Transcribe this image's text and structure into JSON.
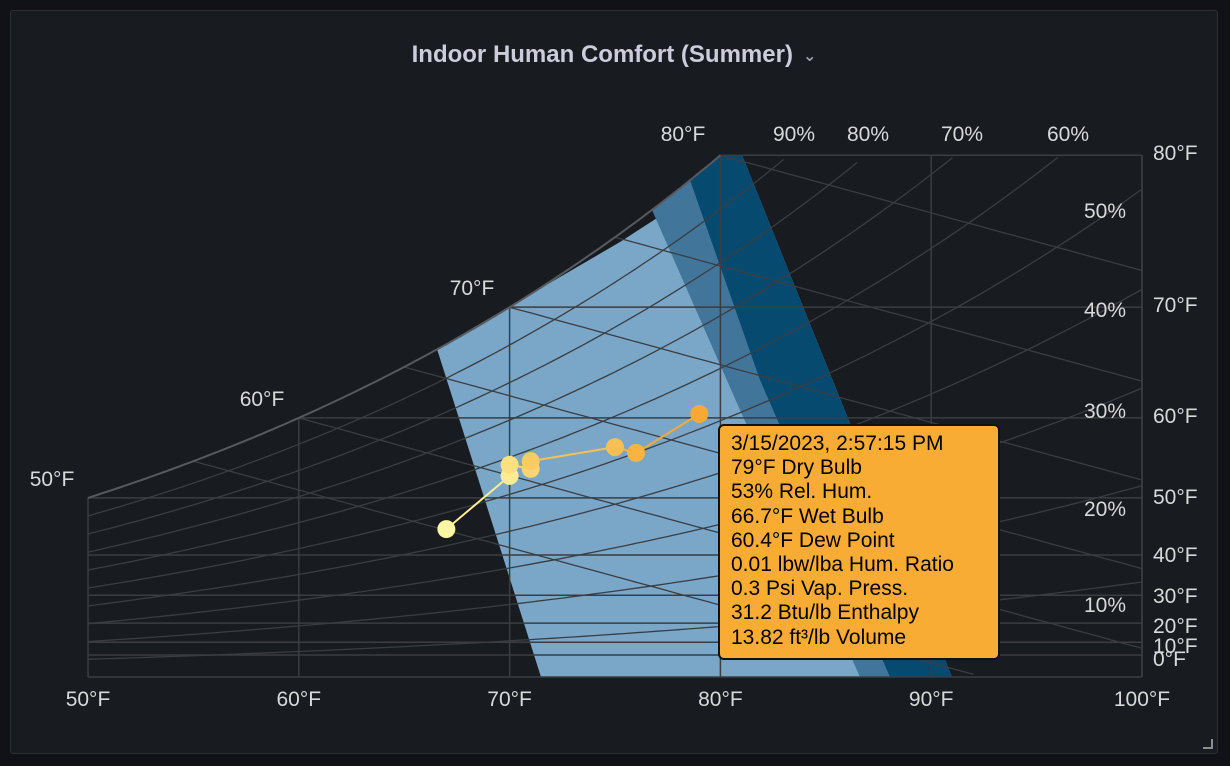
{
  "panel": {
    "title": "Indoor Human Comfort (Summer)",
    "menu_icon": "chevron-down-icon"
  },
  "colors": {
    "background": "#111217",
    "panel": "#181b1f",
    "comfort_zone_light": "#7aa7c7",
    "comfort_zone_mid": "#42759a",
    "comfort_zone_dark": "#064a70",
    "point_oldest": "#fcf7a2",
    "point_newest": "#f8a833",
    "tooltip_bg": "#f8ac33"
  },
  "chart_data": {
    "type": "psychrometric",
    "title": "Indoor Human Comfort (Summer)",
    "dry_bulb_range_f": [
      50,
      100
    ],
    "x_ticks": [
      "50°F",
      "60°F",
      "70°F",
      "80°F",
      "90°F",
      "100°F"
    ],
    "right_axis_ticks": [
      "80°F",
      "70°F",
      "60°F",
      "50°F",
      "40°F",
      "30°F",
      "20°F",
      "10°F",
      "0°F"
    ],
    "saturation_labels": [
      "50°F",
      "60°F",
      "70°F",
      "80°F"
    ],
    "rh_labels": [
      "90%",
      "80%",
      "70%",
      "60%",
      "50%",
      "40%",
      "30%",
      "20%",
      "10%"
    ],
    "series": [
      {
        "points": [
          {
            "db": 67.0,
            "rh": 45
          },
          {
            "db": 70.0,
            "rh": 55
          },
          {
            "db": 70.0,
            "rh": 58
          },
          {
            "db": 71.0,
            "rh": 55
          },
          {
            "db": 71.0,
            "rh": 57
          },
          {
            "db": 75.0,
            "rh": 53
          },
          {
            "db": 76.0,
            "rh": 50
          },
          {
            "db": 79.0,
            "rh": 53
          }
        ]
      }
    ],
    "tooltip": {
      "lines": [
        "3/15/2023, 2:57:15 PM",
        "79°F Dry Bulb",
        "53% Rel. Hum.",
        "66.7°F Wet Bulb",
        "60.4°F Dew Point",
        "0.01 lbw/lba Hum. Ratio",
        "0.3 Psi Vap. Press.",
        "31.2 Btu/lb Enthalpy",
        "13.82 ft³/lb Volume"
      ]
    }
  }
}
